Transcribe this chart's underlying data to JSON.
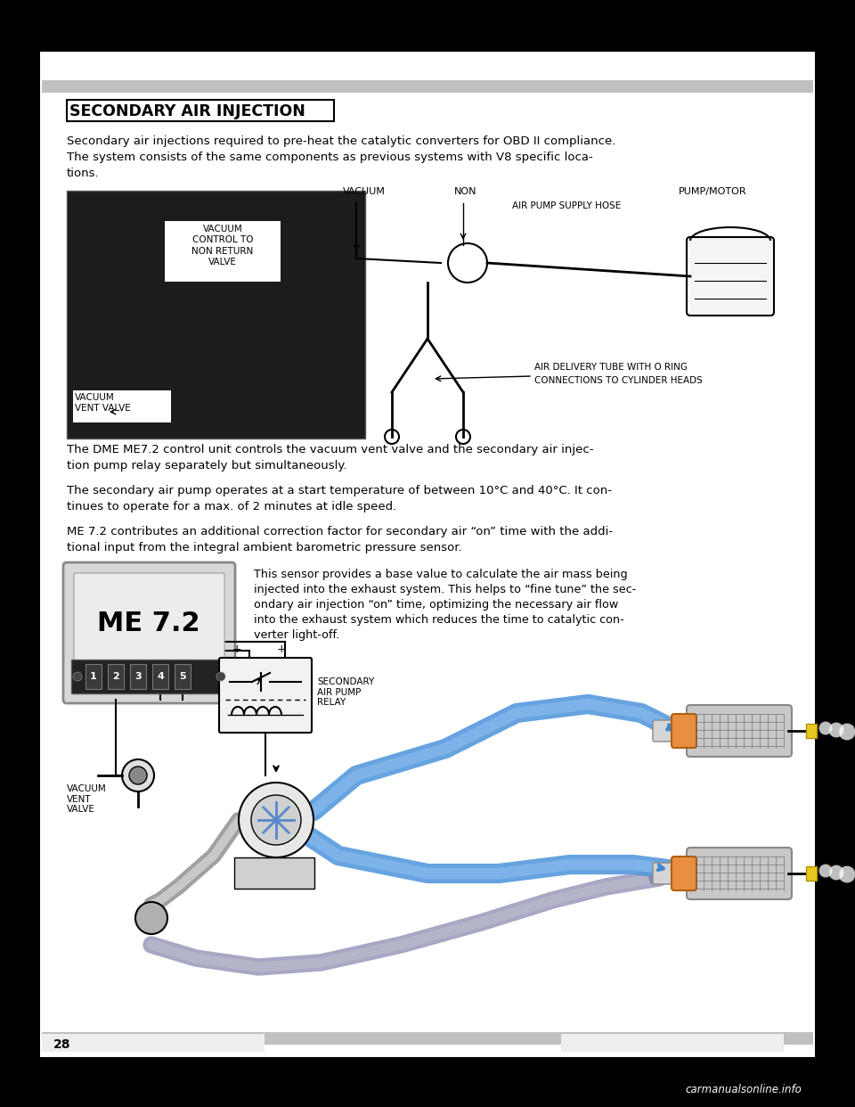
{
  "title": "SECONDARY AIR INJECTION",
  "page_number": "28",
  "watermark": "carmanualsonline.info",
  "para1_line1": "Secondary air injections required to pre-heat the catalytic converters for OBD II compliance.",
  "para1_line2": "The system consists of the same components as previous systems with V8 specific loca-",
  "para1_line3": "tions.",
  "label_vacuum": "VACUUM",
  "label_non": "NON",
  "label_pump_motor": "PUMP/MOTOR",
  "label_air_pump_hose": "AIR PUMP SUPPLY HOSE",
  "label_air_delivery1": "AIR DELIVERY TUBE WITH O RING",
  "label_air_delivery2": "CONNECTIONS TO CYLINDER HEADS",
  "label_vac_control": "VACUUM\nCONTROL TO\nNON RETURN\nVALVE",
  "label_vac_vent_photo": "VACUUM\nVENT VALVE",
  "para3_line1": "The DME ME7.2 control unit controls the vacuum vent valve and the secondary air injec-",
  "para3_line2": "tion pump relay separately but simultaneously.",
  "para4_line1": "The secondary air pump operates at a start temperature of between 10°C and 40°C. It con-",
  "para4_line2": "tinues to operate for a max. of 2 minutes at idle speed.",
  "para5_line1": "ME 7.2 contributes an additional correction factor for secondary air “on” time with the addi-",
  "para5_line2": "tional input from the integral ambient barometric pressure sensor.",
  "me72_label": "ME 7.2",
  "me72_pins": [
    "1",
    "2",
    "3",
    "4",
    "5"
  ],
  "sensor_line1": "This sensor provides a base value to calculate the air mass being",
  "sensor_line2": "injected into the exhaust system. This helps to “fine tune” the sec-",
  "sensor_line3": "ondary air injection “on” time, optimizing the necessary air flow",
  "sensor_line4": "into the exhaust system which reduces the time to catalytic con-",
  "sensor_line5": "verter light-off.",
  "relay_label": "SECONDARY\nAIR PUMP\nRELAY",
  "vacuum_vent_label": "VACUUM\nVENT\nVALVE"
}
